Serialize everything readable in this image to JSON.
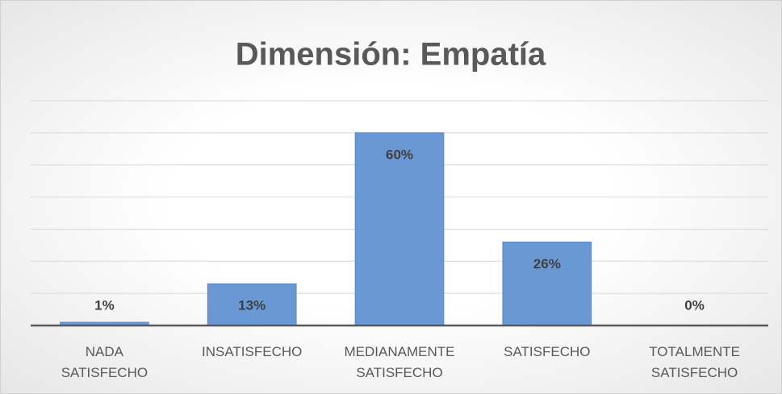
{
  "chart_data": {
    "type": "bar",
    "title": "Dimensión: Empatía",
    "categories": [
      "NADA SATISFECHO",
      "INSATISFECHO",
      "MEDIANAMENTE SATISFECHO",
      "SATISFECHO",
      "TOTALMENTE SATISFECHO"
    ],
    "values": [
      1,
      13,
      60,
      26,
      0
    ],
    "value_labels": [
      "1%",
      "13%",
      "60%",
      "26%",
      "0%"
    ],
    "color": "#6a98d4",
    "ylim": [
      0,
      70
    ],
    "yticks": [
      0,
      10,
      20,
      30,
      40,
      50,
      60,
      70
    ],
    "grid": true
  }
}
